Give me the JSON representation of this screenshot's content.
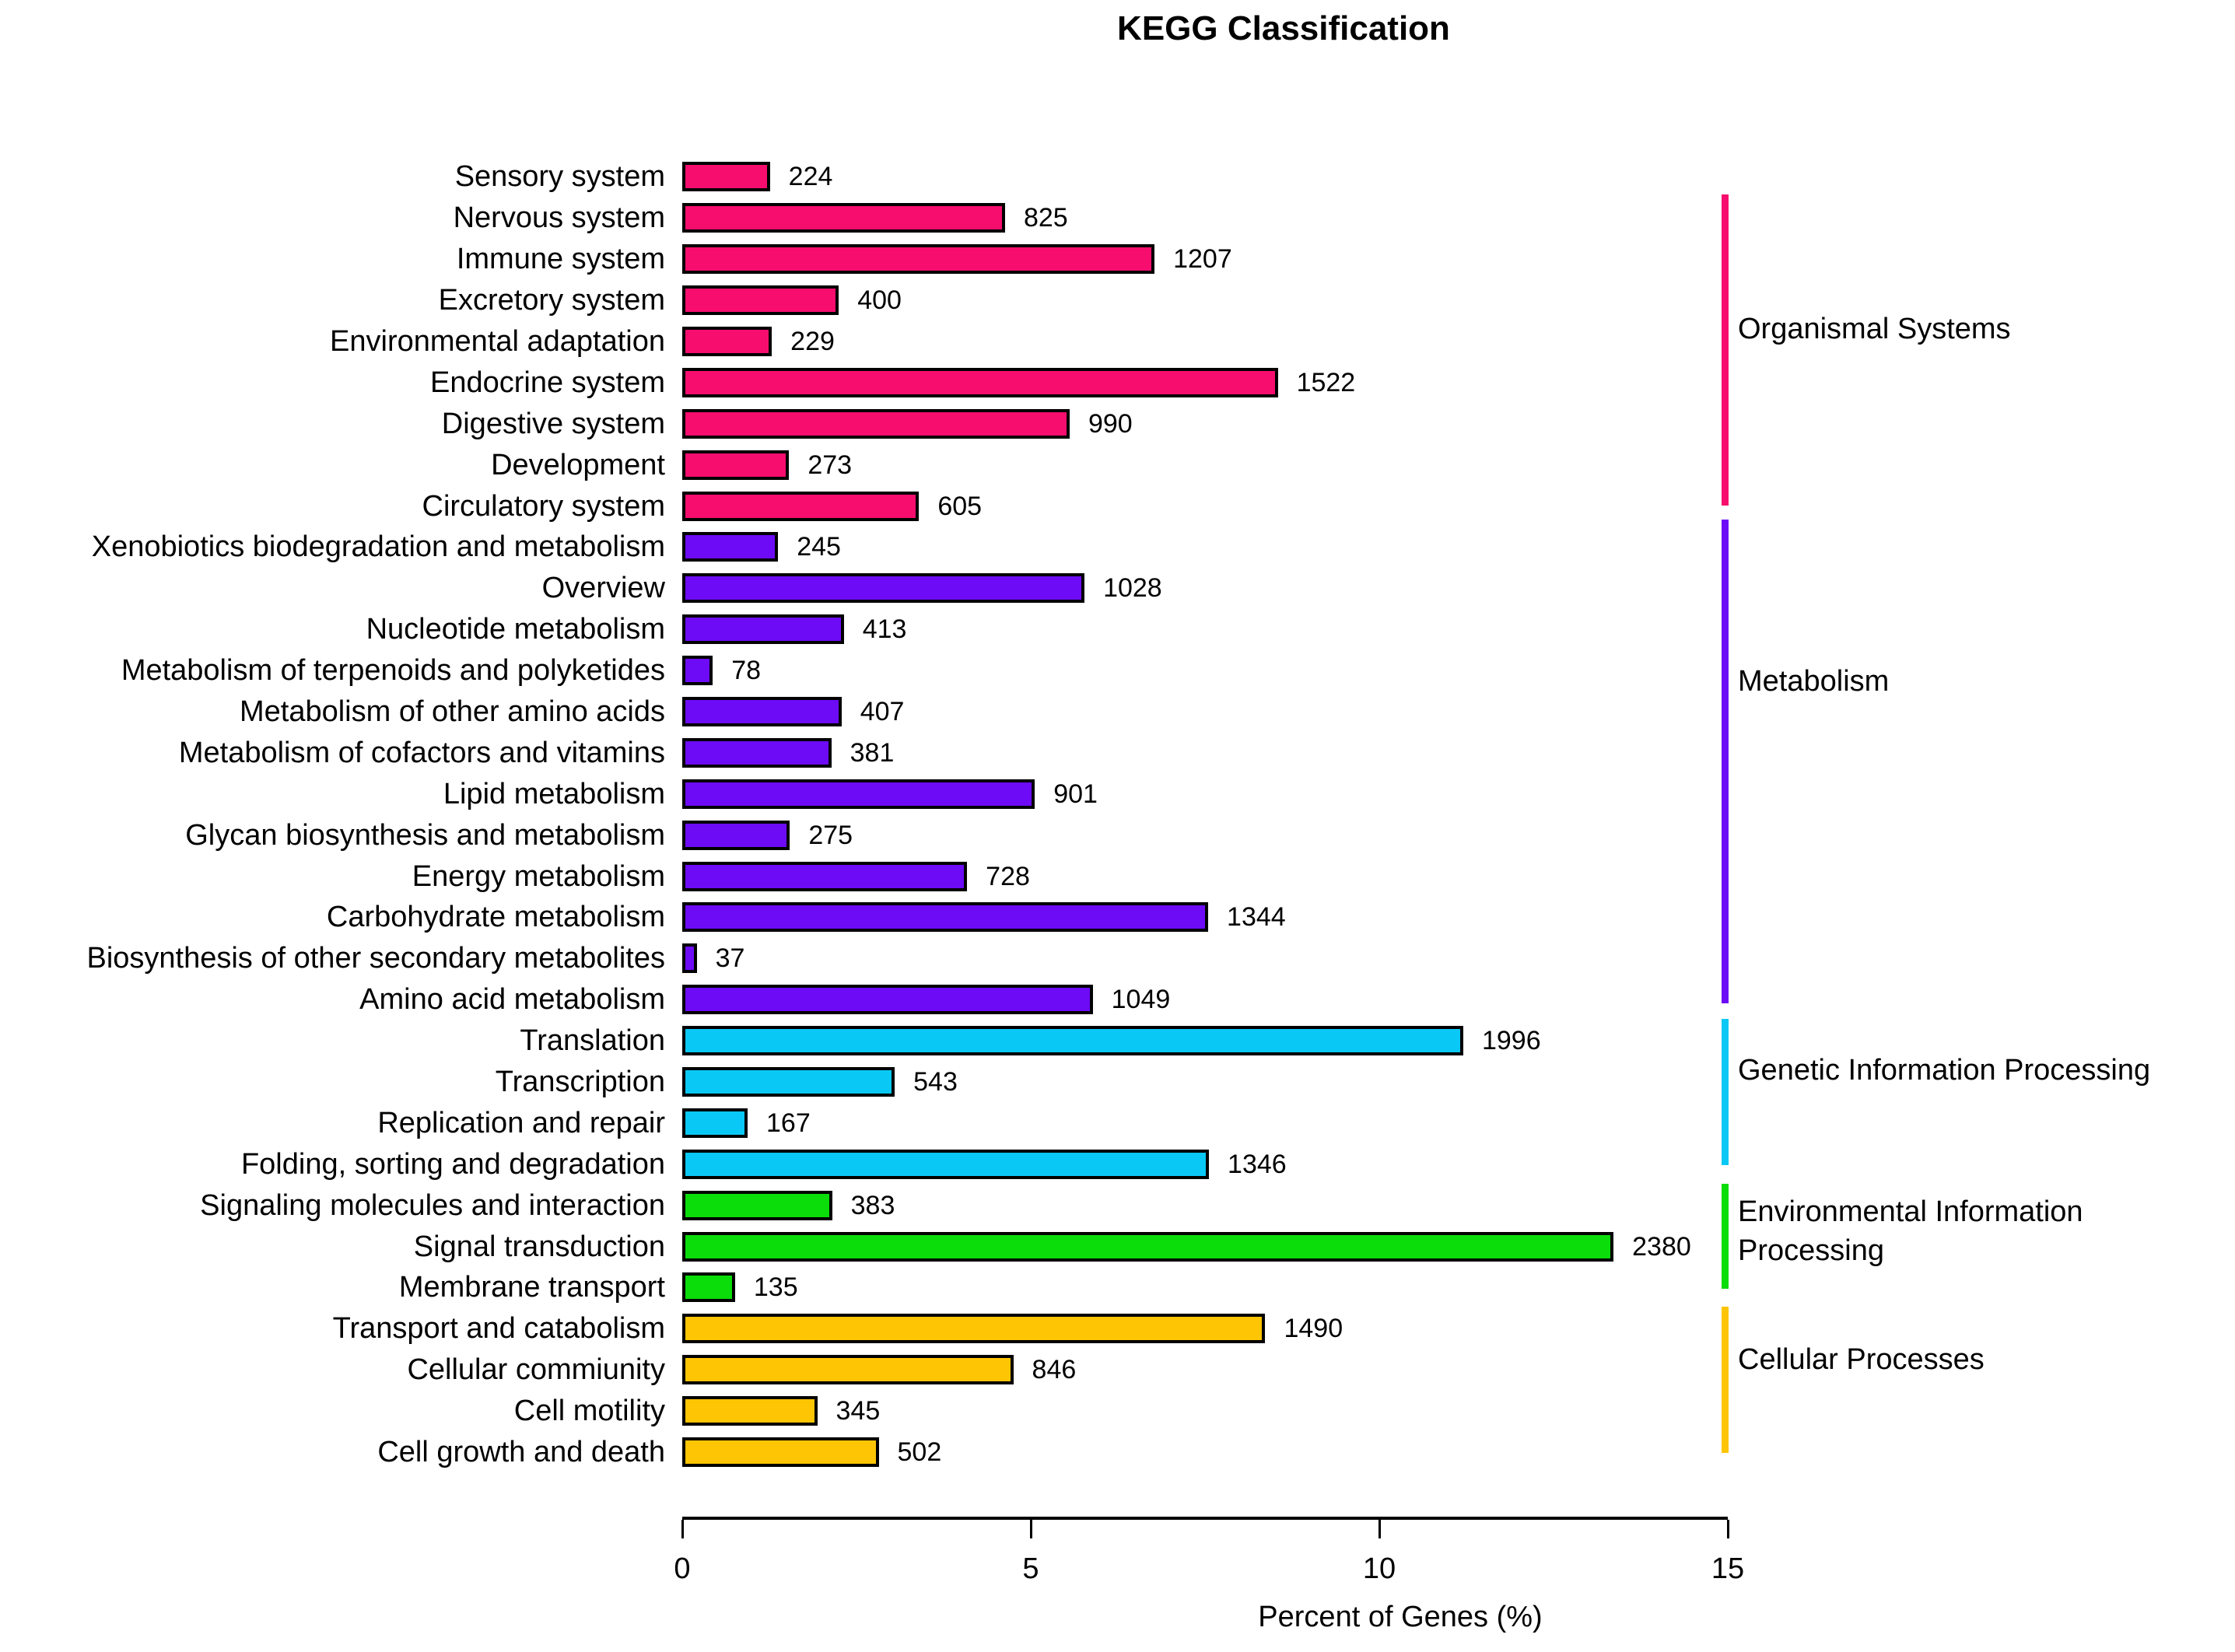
{
  "chart_data": {
    "type": "bar",
    "orientation": "horizontal",
    "title": "KEGG Classification",
    "xlabel": "Percent of Genes (%)",
    "x_ticks": [
      0,
      5,
      10,
      15
    ],
    "xlim": [
      0,
      15
    ],
    "value_label_meaning": "number of genes per KEGG category",
    "legend_position": "right",
    "groups": [
      {
        "name": "Organismal Systems",
        "color": "#F70D6E",
        "items": [
          {
            "label": "Sensory system",
            "value": 224
          },
          {
            "label": "Nervous system",
            "value": 825
          },
          {
            "label": "Immune system",
            "value": 1207
          },
          {
            "label": "Excretory system",
            "value": 400
          },
          {
            "label": "Environmental adaptation",
            "value": 229
          },
          {
            "label": "Endocrine system",
            "value": 1522
          },
          {
            "label": "Digestive system",
            "value": 990
          },
          {
            "label": "Development",
            "value": 273
          },
          {
            "label": "Circulatory system",
            "value": 605
          }
        ]
      },
      {
        "name": "Metabolism",
        "color": "#6D0BF7",
        "items": [
          {
            "label": "Xenobiotics biodegradation and metabolism",
            "value": 245
          },
          {
            "label": "Overview",
            "value": 1028
          },
          {
            "label": "Nucleotide metabolism",
            "value": 413
          },
          {
            "label": "Metabolism of terpenoids and polyketides",
            "value": 78
          },
          {
            "label": "Metabolism of other amino acids",
            "value": 407
          },
          {
            "label": "Metabolism of cofactors and vitamins",
            "value": 381
          },
          {
            "label": "Lipid metabolism",
            "value": 901
          },
          {
            "label": "Glycan biosynthesis and metabolism",
            "value": 275
          },
          {
            "label": "Energy metabolism",
            "value": 728
          },
          {
            "label": "Carbohydrate metabolism",
            "value": 1344
          },
          {
            "label": "Biosynthesis of other secondary metabolites",
            "value": 37
          },
          {
            "label": "Amino acid metabolism",
            "value": 1049
          }
        ]
      },
      {
        "name": "Genetic Information Processing",
        "color": "#0AC8F5",
        "items": [
          {
            "label": "Translation",
            "value": 1996
          },
          {
            "label": "Transcription",
            "value": 543
          },
          {
            "label": "Replication and repair",
            "value": 167
          },
          {
            "label": "Folding, sorting and degradation",
            "value": 1346
          }
        ]
      },
      {
        "name": "Environmental Information Processing",
        "color": "#0ADD0A",
        "items": [
          {
            "label": "Signaling molecules and interaction",
            "value": 383
          },
          {
            "label": "Signal transduction",
            "value": 2380
          },
          {
            "label": "Membrane transport",
            "value": 135
          }
        ]
      },
      {
        "name": "Cellular Processes",
        "color": "#FDC503",
        "items": [
          {
            "label": "Transport and catabolism",
            "value": 1490
          },
          {
            "label": "Cellular commiunity",
            "value": 846
          },
          {
            "label": "Cell motility",
            "value": 345
          },
          {
            "label": "Cell growth and death",
            "value": 502
          }
        ]
      }
    ]
  }
}
